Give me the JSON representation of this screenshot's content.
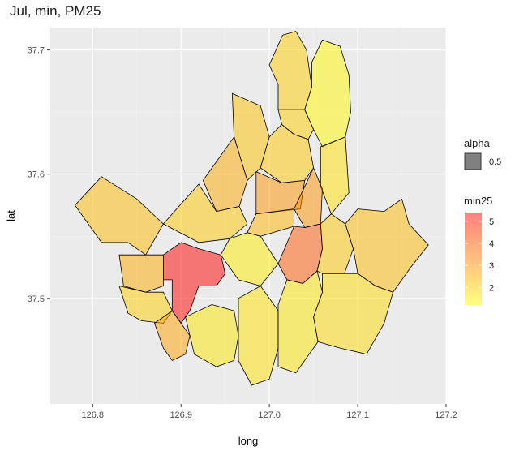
{
  "chart_data": {
    "type": "choropleth",
    "title": "Jul, min, PM25",
    "xlabel": "long",
    "ylabel": "lat",
    "x_ticks": [
      126.8,
      126.9,
      127.0,
      127.1,
      127.2
    ],
    "y_ticks": [
      37.5,
      37.6,
      37.7
    ],
    "x_tick_labels": [
      "126.8",
      "126.9",
      "127.0",
      "127.1",
      "127.2"
    ],
    "y_tick_labels": [
      "37.5",
      "37.6",
      "37.7"
    ],
    "xlim": [
      126.752,
      127.2
    ],
    "ylim": [
      37.415,
      37.718
    ],
    "grid": true,
    "legend_position": "right",
    "legend_alpha": {
      "title": "alpha",
      "label": "0.5"
    },
    "legend_color": {
      "title": "min25",
      "ticks": [
        2,
        3,
        4,
        5
      ],
      "tick_labels": [
        "2",
        "3",
        "4",
        "5"
      ],
      "range": [
        1.2,
        5.4
      ],
      "low_color": "#ffff00",
      "high_color": "#ff0000"
    },
    "colors": {
      "panel": "#ebebeb",
      "grid_major": "#ffffff",
      "grid_minor": "#f2f2f2",
      "border": "#000000"
    },
    "regions": [
      {
        "value": 2.0,
        "polygon": [
          [
            127.01,
            37.652
          ],
          [
            127.04,
            37.652
          ],
          [
            127.05,
            37.636
          ],
          [
            127.044,
            37.628
          ],
          [
            127.028,
            37.632
          ],
          [
            127.014,
            37.64
          ]
        ]
      },
      {
        "value": 2.0,
        "polygon": [
          [
            127.0,
            37.688
          ],
          [
            127.015,
            37.712
          ],
          [
            127.03,
            37.715
          ],
          [
            127.042,
            37.7
          ],
          [
            127.048,
            37.67
          ],
          [
            127.04,
            37.652
          ],
          [
            127.01,
            37.652
          ],
          [
            127.01,
            37.672
          ]
        ]
      },
      {
        "value": 1.3,
        "polygon": [
          [
            127.048,
            37.69
          ],
          [
            127.06,
            37.708
          ],
          [
            127.08,
            37.703
          ],
          [
            127.09,
            37.68
          ],
          [
            127.092,
            37.65
          ],
          [
            127.086,
            37.63
          ],
          [
            127.06,
            37.622
          ],
          [
            127.05,
            37.636
          ],
          [
            127.04,
            37.652
          ],
          [
            127.048,
            37.67
          ]
        ]
      },
      {
        "value": 1.7,
        "polygon": [
          [
            127.058,
            37.622
          ],
          [
            127.086,
            37.63
          ],
          [
            127.09,
            37.585
          ],
          [
            127.07,
            37.568
          ],
          [
            127.058,
            37.59
          ]
        ]
      },
      {
        "value": 2.2,
        "polygon": [
          [
            126.958,
            37.665
          ],
          [
            126.99,
            37.655
          ],
          [
            127.0,
            37.63
          ],
          [
            126.99,
            37.605
          ],
          [
            126.975,
            37.595
          ],
          [
            126.96,
            37.63
          ]
        ]
      },
      {
        "value": 2.1,
        "polygon": [
          [
            127.0,
            37.63
          ],
          [
            127.014,
            37.64
          ],
          [
            127.028,
            37.632
          ],
          [
            127.044,
            37.628
          ],
          [
            127.05,
            37.605
          ],
          [
            127.04,
            37.595
          ],
          [
            127.014,
            37.593
          ],
          [
            126.99,
            37.605
          ]
        ]
      },
      {
        "value": 3.0,
        "polygon": [
          [
            126.985,
            37.602
          ],
          [
            127.014,
            37.593
          ],
          [
            127.04,
            37.595
          ],
          [
            127.035,
            37.572
          ],
          [
            126.985,
            37.568
          ]
        ]
      },
      {
        "value": 3.0,
        "polygon": [
          [
            127.028,
            37.572
          ],
          [
            127.05,
            37.605
          ],
          [
            127.06,
            37.588
          ],
          [
            127.058,
            37.56
          ],
          [
            127.04,
            37.557
          ]
        ]
      },
      {
        "value": 2.6,
        "polygon": [
          [
            126.925,
            37.595
          ],
          [
            126.96,
            37.63
          ],
          [
            126.975,
            37.595
          ],
          [
            126.966,
            37.574
          ],
          [
            126.94,
            37.57
          ]
        ]
      },
      {
        "value": 2.1,
        "polygon": [
          [
            126.88,
            37.56
          ],
          [
            126.92,
            37.592
          ],
          [
            126.94,
            37.57
          ],
          [
            126.966,
            37.574
          ],
          [
            126.975,
            37.56
          ],
          [
            126.955,
            37.548
          ],
          [
            126.92,
            37.545
          ]
        ]
      },
      {
        "value": 2.4,
        "polygon": [
          [
            126.985,
            37.568
          ],
          [
            127.028,
            37.572
          ],
          [
            127.028,
            37.558
          ],
          [
            126.99,
            37.55
          ],
          [
            126.975,
            37.553
          ]
        ]
      },
      {
        "value": 4.0,
        "polygon": [
          [
            127.028,
            37.558
          ],
          [
            127.04,
            37.557
          ],
          [
            127.058,
            37.56
          ],
          [
            127.06,
            37.54
          ],
          [
            127.054,
            37.522
          ],
          [
            127.038,
            37.512
          ],
          [
            127.02,
            37.515
          ],
          [
            127.01,
            37.528
          ]
        ]
      },
      {
        "value": 2.1,
        "polygon": [
          [
            127.058,
            37.56
          ],
          [
            127.07,
            37.568
          ],
          [
            127.086,
            37.56
          ],
          [
            127.095,
            37.54
          ],
          [
            127.085,
            37.52
          ],
          [
            127.06,
            37.52
          ],
          [
            127.054,
            37.522
          ],
          [
            127.06,
            37.54
          ]
        ]
      },
      {
        "value": 2.3,
        "polygon": [
          [
            127.086,
            37.56
          ],
          [
            127.1,
            37.572
          ],
          [
            127.13,
            37.57
          ],
          [
            127.15,
            37.58
          ],
          [
            127.158,
            37.56
          ],
          [
            127.18,
            37.543
          ],
          [
            127.16,
            37.525
          ],
          [
            127.14,
            37.505
          ],
          [
            127.12,
            37.51
          ],
          [
            127.1,
            37.52
          ],
          [
            127.095,
            37.54
          ]
        ]
      },
      {
        "value": 1.5,
        "polygon": [
          [
            126.955,
            37.548
          ],
          [
            126.975,
            37.553
          ],
          [
            126.99,
            37.55
          ],
          [
            127.01,
            37.528
          ],
          [
            126.99,
            37.51
          ],
          [
            126.965,
            37.515
          ],
          [
            126.945,
            37.535
          ]
        ]
      },
      {
        "value": 2.3,
        "polygon": [
          [
            126.78,
            37.575
          ],
          [
            126.81,
            37.598
          ],
          [
            126.85,
            37.58
          ],
          [
            126.88,
            37.56
          ],
          [
            126.86,
            37.535
          ],
          [
            126.84,
            37.545
          ],
          [
            126.81,
            37.545
          ],
          [
            126.795,
            37.56
          ]
        ]
      },
      {
        "value": 2.6,
        "polygon": [
          [
            126.83,
            37.535
          ],
          [
            126.86,
            37.535
          ],
          [
            126.88,
            37.535
          ],
          [
            126.88,
            37.51
          ],
          [
            126.86,
            37.505
          ],
          [
            126.835,
            37.51
          ]
        ]
      },
      {
        "value": 5.4,
        "polygon": [
          [
            126.88,
            37.535
          ],
          [
            126.9,
            37.545
          ],
          [
            126.92,
            37.54
          ],
          [
            126.945,
            37.535
          ],
          [
            126.95,
            37.52
          ],
          [
            126.94,
            37.51
          ],
          [
            126.92,
            37.51
          ],
          [
            126.91,
            37.49
          ],
          [
            126.9,
            37.48
          ],
          [
            126.89,
            37.49
          ],
          [
            126.89,
            37.515
          ],
          [
            126.88,
            37.515
          ]
        ]
      },
      {
        "value": 2.0,
        "polygon": [
          [
            126.83,
            37.51
          ],
          [
            126.86,
            37.505
          ],
          [
            126.88,
            37.505
          ],
          [
            126.89,
            37.49
          ],
          [
            126.88,
            37.48
          ],
          [
            126.855,
            37.482
          ],
          [
            126.84,
            37.488
          ]
        ]
      },
      {
        "value": 2.7,
        "polygon": [
          [
            126.87,
            37.48
          ],
          [
            126.89,
            37.49
          ],
          [
            126.9,
            37.48
          ],
          [
            126.91,
            37.47
          ],
          [
            126.905,
            37.455
          ],
          [
            126.89,
            37.45
          ],
          [
            126.88,
            37.46
          ]
        ]
      },
      {
        "value": 1.6,
        "polygon": [
          [
            126.905,
            37.485
          ],
          [
            126.935,
            37.495
          ],
          [
            126.96,
            37.49
          ],
          [
            126.965,
            37.47
          ],
          [
            126.96,
            37.45
          ],
          [
            126.94,
            37.445
          ],
          [
            126.915,
            37.455
          ]
        ]
      },
      {
        "value": 1.7,
        "polygon": [
          [
            126.965,
            37.5
          ],
          [
            126.99,
            37.51
          ],
          [
            127.01,
            37.49
          ],
          [
            127.01,
            37.46
          ],
          [
            127.0,
            37.435
          ],
          [
            126.98,
            37.43
          ],
          [
            126.965,
            37.45
          ]
        ]
      },
      {
        "value": 1.6,
        "polygon": [
          [
            127.01,
            37.495
          ],
          [
            127.02,
            37.515
          ],
          [
            127.038,
            37.512
          ],
          [
            127.054,
            37.522
          ],
          [
            127.06,
            37.505
          ],
          [
            127.05,
            37.485
          ],
          [
            127.055,
            37.465
          ],
          [
            127.04,
            37.45
          ],
          [
            127.03,
            37.44
          ],
          [
            127.01,
            37.445
          ]
        ]
      },
      {
        "value": 1.8,
        "polygon": [
          [
            127.06,
            37.52
          ],
          [
            127.085,
            37.52
          ],
          [
            127.1,
            37.52
          ],
          [
            127.12,
            37.51
          ],
          [
            127.14,
            37.505
          ],
          [
            127.13,
            37.48
          ],
          [
            127.11,
            37.455
          ],
          [
            127.08,
            37.46
          ],
          [
            127.055,
            37.465
          ],
          [
            127.05,
            37.485
          ],
          [
            127.06,
            37.505
          ]
        ]
      }
    ]
  }
}
